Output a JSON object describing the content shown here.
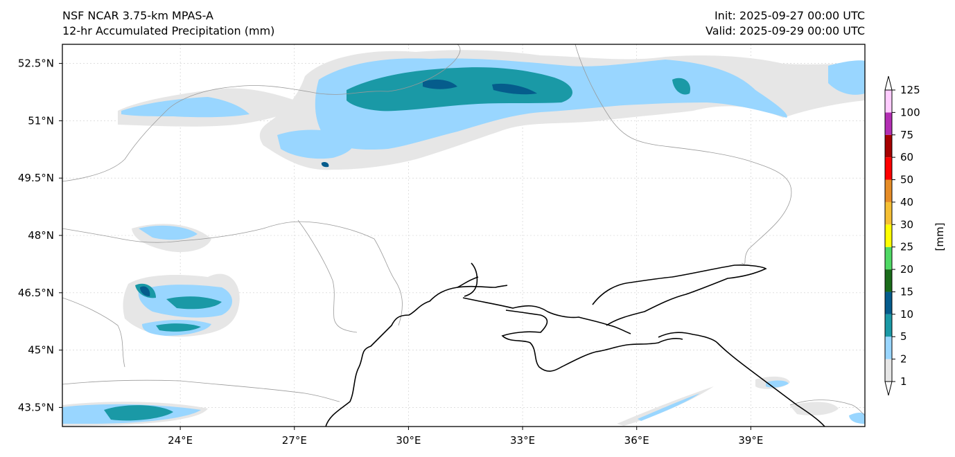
{
  "header": {
    "model_title": "NSF NCAR 3.75-km MPAS-A",
    "field_title": "12-hr Accumulated Precipitation (mm)",
    "init_label": "Init: 2025-09-27 00:00 UTC",
    "valid_label": "Valid: 2025-09-29 00:00 UTC"
  },
  "map": {
    "lon_ticks": [
      "24°E",
      "27°E",
      "30°E",
      "33°E",
      "36°E",
      "39°E"
    ],
    "lat_ticks": [
      "52.5°N",
      "51°N",
      "49.5°N",
      "48°N",
      "46.5°N",
      "45°N",
      "43.5°N"
    ],
    "lon_values": [
      24,
      27,
      30,
      33,
      36,
      39
    ],
    "lat_values": [
      52.5,
      51,
      49.5,
      48,
      46.5,
      45,
      43.5
    ],
    "lon_range": [
      20.9,
      42
    ],
    "lat_range": [
      43,
      53
    ]
  },
  "colorbar": {
    "unit_label": "[mm]",
    "levels": [
      "1",
      "2",
      "5",
      "10",
      "15",
      "20",
      "25",
      "30",
      "40",
      "50",
      "60",
      "75",
      "100",
      "125"
    ],
    "colors": [
      "#e6e6e6",
      "#99d6ff",
      "#1a99a6",
      "#055c8c",
      "#1a6b1a",
      "#4fd964",
      "#ffff00",
      "#f5bf33",
      "#e68c26",
      "#ff0000",
      "#a60000",
      "#b32eb3",
      "#ffccff"
    ]
  },
  "colors": {
    "coastline": "#000000",
    "borders": "#999999",
    "light": "#e6e6e6",
    "lightblue": "#99d6ff",
    "teal": "#1a99a6",
    "darkblue": "#055c8c"
  }
}
